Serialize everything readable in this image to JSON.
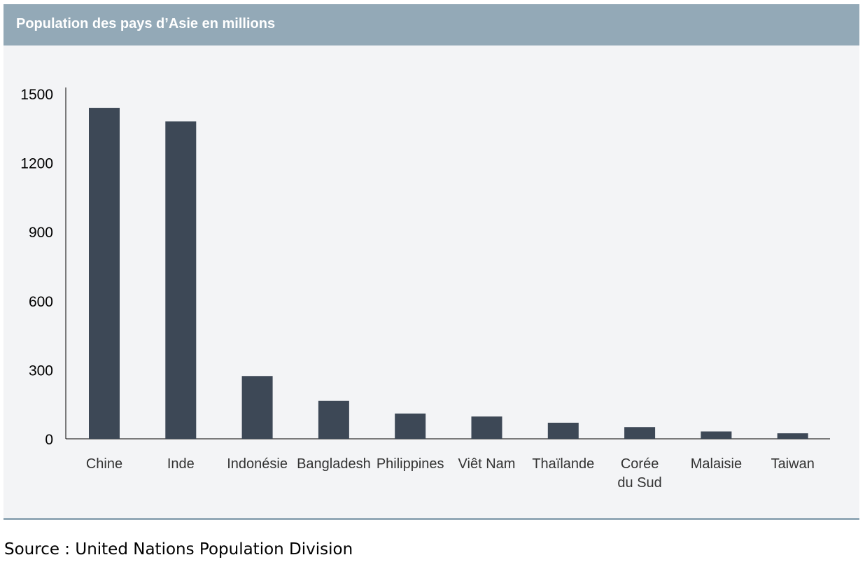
{
  "header": {
    "title": "Population des pays d’Asie en millions"
  },
  "source": "Source : United Nations Population Division",
  "colors": {
    "bar": "#3d4856",
    "header": "#93a9b7",
    "panel": "#f3f4f6",
    "axis": "#000000"
  },
  "chart_data": {
    "type": "bar",
    "title": "Population des pays d’Asie en millions",
    "xlabel": "",
    "ylabel": "",
    "categories": [
      "Chine",
      "Inde",
      "Indonésie",
      "Bangladesh",
      "Philippines",
      "Viêt Nam",
      "Thaïlande",
      "Corée du Sud",
      "Malaisie",
      "Taiwan"
    ],
    "category_lines": [
      [
        "Chine"
      ],
      [
        "Inde"
      ],
      [
        "Indonésie"
      ],
      [
        "Bangladesh"
      ],
      [
        "Philippines"
      ],
      [
        "Viêt Nam"
      ],
      [
        "Thaïlande"
      ],
      [
        "Corée",
        "du Sud"
      ],
      [
        "Malaisie"
      ],
      [
        "Taiwan"
      ]
    ],
    "values": [
      1439,
      1380,
      273,
      165,
      110,
      97,
      70,
      51,
      32,
      24
    ],
    "ylim": [
      0,
      1500
    ],
    "yticks": [
      0,
      300,
      600,
      900,
      1200,
      1500
    ],
    "grid": false,
    "legend": "none"
  }
}
